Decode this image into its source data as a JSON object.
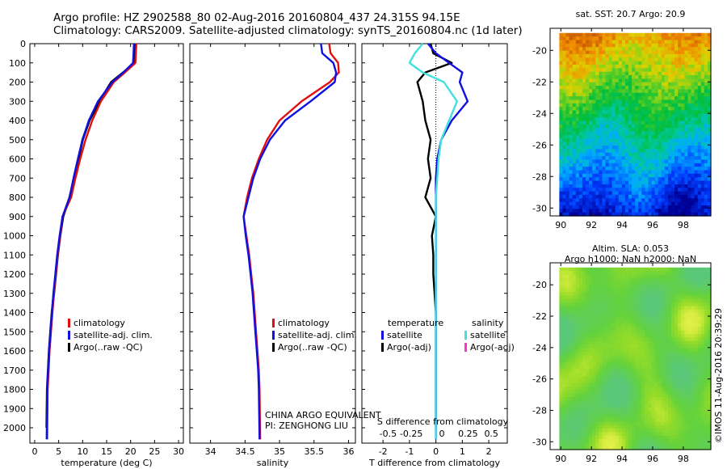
{
  "header": {
    "line1": "Argo profile: HZ 2902588_80 02-Aug-2016 20160804_437 24.315S 94.15E",
    "line2": "Climatology: CARS2009. Satellite-adjusted climatology: synTS_20160804.nc (1d later)"
  },
  "colors": {
    "climatology": "#e01010",
    "satellite_adj": "#1010e0",
    "argo": "#000000",
    "sat_diff": "#1aa7e0",
    "argo_salinity_diff": "#ff33cc",
    "sal_satellite": "#44e0e0"
  },
  "chart_data": [
    {
      "type": "line",
      "id": "temperature",
      "xlabel": "temperature (deg C)",
      "xlim": [
        -1,
        31
      ],
      "xticks": [
        0,
        5,
        10,
        15,
        20,
        25,
        30
      ],
      "ylim": [
        0,
        2080
      ],
      "yticks": [
        0,
        100,
        200,
        300,
        400,
        500,
        600,
        700,
        800,
        900,
        1000,
        1100,
        1200,
        1300,
        1400,
        1500,
        1600,
        1700,
        1800,
        1900,
        2000
      ],
      "legend": [
        "climatology",
        "satellite-adj. clim.",
        "Argo(..raw -QC)"
      ],
      "series": [
        {
          "name": "climatology",
          "x": [
            21.2,
            21.1,
            21.0,
            18.8,
            16.5,
            13.8,
            12.0,
            10.6,
            9.5,
            8.5,
            7.6,
            5.8,
            5.3,
            4.8,
            4.4,
            4.0,
            3.7,
            3.4,
            3.1,
            2.9,
            2.7,
            2.6
          ],
          "y": [
            0,
            50,
            100,
            150,
            200,
            300,
            400,
            500,
            600,
            700,
            800,
            900,
            1000,
            1100,
            1200,
            1300,
            1400,
            1500,
            1600,
            1700,
            1800,
            2060
          ]
        },
        {
          "name": "satellite-adj. clim.",
          "x": [
            20.7,
            20.6,
            20.5,
            18.5,
            16.2,
            13.2,
            11.3,
            10.0,
            9.0,
            8.1,
            7.3,
            5.8,
            5.2,
            4.7,
            4.3,
            3.9,
            3.6,
            3.3,
            3.0,
            2.8,
            2.6,
            2.5
          ],
          "y": [
            0,
            50,
            100,
            150,
            200,
            300,
            400,
            500,
            600,
            700,
            800,
            900,
            1000,
            1100,
            1200,
            1300,
            1400,
            1500,
            1600,
            1700,
            1800,
            2060
          ]
        },
        {
          "name": "Argo(..raw -QC)",
          "x": [
            20.9,
            20.9,
            20.8,
            18.5,
            16.0,
            13.5,
            11.4,
            10.0,
            9.1,
            8.2,
            7.3,
            5.9,
            5.3,
            4.8,
            4.4,
            4.0,
            3.6,
            3.3,
            3.0,
            2.8,
            2.6,
            2.5
          ],
          "y": [
            0,
            50,
            100,
            150,
            200,
            300,
            400,
            500,
            600,
            700,
            800,
            900,
            1000,
            1100,
            1200,
            1300,
            1400,
            1500,
            1600,
            1700,
            1800,
            2000
          ]
        }
      ]
    },
    {
      "type": "line",
      "id": "salinity",
      "xlabel": "salinity",
      "xlim": [
        33.7,
        36.1
      ],
      "xticks": [
        34,
        34.5,
        35,
        35.5,
        36
      ],
      "ylim": [
        0,
        2080
      ],
      "legend": [
        "climatology",
        "satellite-adj. clim.",
        "Argo(..raw -QC)"
      ],
      "annotations": [
        "CHINA ARGO EQUIVALENT",
        "PI: ZENGHONG LIU"
      ],
      "series": [
        {
          "name": "climatology",
          "x": [
            35.72,
            35.74,
            35.85,
            35.86,
            35.73,
            35.32,
            35.0,
            34.82,
            34.7,
            34.6,
            34.53,
            34.48,
            34.52,
            34.56,
            34.59,
            34.62,
            34.64,
            34.66,
            34.68,
            34.7,
            34.71,
            34.72
          ],
          "y": [
            0,
            50,
            100,
            150,
            200,
            300,
            400,
            500,
            600,
            700,
            800,
            900,
            1000,
            1100,
            1200,
            1300,
            1400,
            1500,
            1600,
            1700,
            1800,
            2060
          ]
        },
        {
          "name": "satellite-adj. clim.",
          "x": [
            35.6,
            35.62,
            35.78,
            35.82,
            35.8,
            35.45,
            35.08,
            34.86,
            34.72,
            34.62,
            34.55,
            34.48,
            34.51,
            34.55,
            34.58,
            34.61,
            34.63,
            34.65,
            34.67,
            34.69,
            34.7,
            34.71
          ],
          "y": [
            0,
            50,
            100,
            150,
            200,
            300,
            400,
            500,
            600,
            700,
            800,
            900,
            1000,
            1100,
            1200,
            1300,
            1400,
            1500,
            1600,
            1700,
            1800,
            2060
          ]
        }
      ]
    },
    {
      "type": "line",
      "id": "differences",
      "xlabel": "T difference from climatology",
      "xlabel_top": "S difference from climatology",
      "xlim": [
        -2.8,
        2.7
      ],
      "xticks": [
        -2,
        -1,
        0,
        1,
        2
      ],
      "s_ticks": [
        "-0.5",
        "-0.25",
        "0",
        "0.25",
        "0.5"
      ],
      "ylim": [
        0,
        2080
      ],
      "legend": {
        "temperature": [
          "satellite",
          "Argo(-adj)"
        ],
        "salinity": [
          "satellite",
          "Argo(-adj)"
        ],
        "titles": [
          "temperature",
          "salinity"
        ]
      },
      "series": [
        {
          "name": "temperature satellite",
          "x": [
            -0.3,
            0.0,
            0.5,
            1.0,
            0.9,
            1.2,
            0.6,
            0.2,
            0.05,
            0.0,
            0.0,
            0.0,
            0.0,
            0.0,
            0.0,
            0.0,
            0.0,
            0.0,
            0.0,
            0.0,
            0.0,
            0.0
          ],
          "y": [
            0,
            50,
            100,
            150,
            200,
            300,
            400,
            500,
            600,
            700,
            800,
            900,
            1000,
            1100,
            1200,
            1300,
            1400,
            1500,
            1600,
            1700,
            1800,
            2060
          ]
        },
        {
          "name": "temperature Argo(-adj)",
          "x": [
            -0.2,
            -0.1,
            0.6,
            -0.4,
            -0.7,
            -0.5,
            -0.4,
            -0.2,
            -0.3,
            -0.2,
            -0.4,
            0.0,
            -0.15,
            -0.1,
            -0.1,
            -0.05,
            0.0,
            0.0,
            0.0,
            0.0,
            0.0,
            0.0
          ],
          "y": [
            0,
            50,
            100,
            150,
            200,
            300,
            400,
            500,
            600,
            700,
            800,
            900,
            1000,
            1100,
            1200,
            1300,
            1400,
            1500,
            1600,
            1700,
            1800,
            2000
          ]
        },
        {
          "name": "salinity satellite",
          "x": [
            -0.5,
            -0.8,
            -1.0,
            -0.5,
            0.3,
            0.8,
            0.5,
            0.2,
            0.1,
            0.05,
            0.0,
            0.0,
            0.0,
            0.0,
            0.0,
            0.0,
            0.0,
            0.0,
            0.0,
            0.0,
            0.0,
            0.0
          ],
          "y": [
            0,
            50,
            100,
            150,
            200,
            300,
            400,
            500,
            600,
            700,
            800,
            900,
            1000,
            1100,
            1200,
            1300,
            1400,
            1500,
            1600,
            1700,
            1800,
            2060
          ]
        }
      ]
    },
    {
      "type": "heatmap",
      "id": "sst-map",
      "title": "sat. SST: 20.7 Argo: 20.9",
      "xticks": [
        90,
        92,
        94,
        96,
        98
      ],
      "yticks": [
        -20,
        -22,
        -24,
        -26,
        -28,
        -30
      ],
      "xlim": [
        89.3,
        99.8
      ],
      "ylim": [
        -30.5,
        -18.6
      ]
    },
    {
      "type": "heatmap",
      "id": "sla-map",
      "title": "Altim. SLA: 0.053",
      "subtitle": "Argo h1000: NaN h2000: NaN",
      "xticks": [
        90,
        92,
        94,
        96,
        98
      ],
      "yticks": [
        -20,
        -22,
        -24,
        -26,
        -28,
        -30
      ],
      "xlim": [
        89.3,
        99.8
      ],
      "ylim": [
        -30.5,
        -18.6
      ]
    }
  ],
  "credit": "©IMOS 11-Aug-2016 20:39:29"
}
